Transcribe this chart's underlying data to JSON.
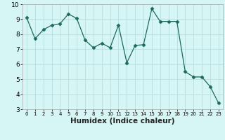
{
  "x": [
    0,
    1,
    2,
    3,
    4,
    5,
    6,
    7,
    8,
    9,
    10,
    11,
    12,
    13,
    14,
    15,
    16,
    17,
    18,
    19,
    20,
    21,
    22,
    23
  ],
  "y": [
    9.1,
    7.7,
    8.3,
    8.6,
    8.7,
    9.35,
    9.05,
    7.6,
    7.1,
    7.4,
    7.1,
    8.6,
    6.1,
    7.25,
    7.3,
    9.7,
    8.85,
    8.85,
    8.85,
    5.5,
    5.15,
    5.15,
    4.5,
    3.4
  ],
  "line_color": "#1a6b5a",
  "marker": "D",
  "marker_size": 2.5,
  "bg_color": "#d6f5f5",
  "grid_color": "#b8dede",
  "xlabel": "Humidex (Indice chaleur)",
  "ylim": [
    3,
    10
  ],
  "xlim": [
    -0.5,
    23.5
  ],
  "yticks": [
    3,
    4,
    5,
    6,
    7,
    8,
    9,
    10
  ],
  "xticks": [
    0,
    1,
    2,
    3,
    4,
    5,
    6,
    7,
    8,
    9,
    10,
    11,
    12,
    13,
    14,
    15,
    16,
    17,
    18,
    19,
    20,
    21,
    22,
    23
  ],
  "ytick_fontsize": 6.5,
  "xtick_fontsize": 5.0,
  "xlabel_fontsize": 7.5,
  "linewidth": 0.9
}
